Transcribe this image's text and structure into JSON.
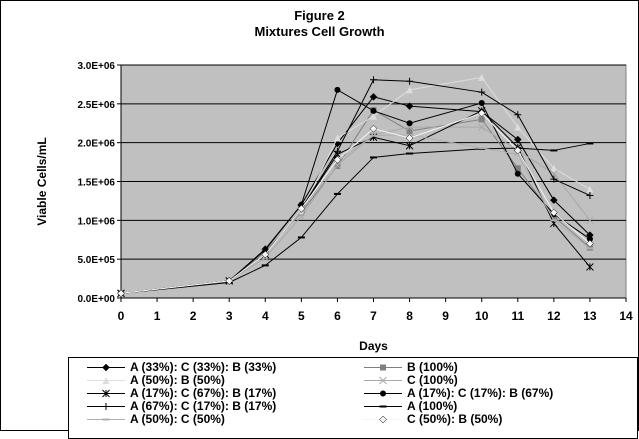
{
  "chart_data": {
    "type": "line",
    "title": "Figure 2",
    "subtitle": "Mixtures Cell Growth",
    "xlabel": "Days",
    "ylabel": "Viable Cells/mL",
    "xlim": [
      0,
      14
    ],
    "ylim": [
      0,
      3000000
    ],
    "x_ticks": [
      "0",
      "1",
      "2",
      "3",
      "4",
      "5",
      "6",
      "7",
      "8",
      "9",
      "10",
      "11",
      "12",
      "13",
      "14"
    ],
    "y_ticks": [
      "0.0E+00",
      "5.0E+05",
      "1.0E+06",
      "1.5E+06",
      "2.0E+06",
      "2.5E+06",
      "3.0E+06"
    ],
    "grid": true,
    "plot_background": "#c0c0c0",
    "legend_position": "bottom",
    "x": [
      0,
      3,
      4,
      5,
      6,
      7,
      8,
      10,
      11,
      12,
      13
    ],
    "series": [
      {
        "name": "A (33%): C (33%): B (33%)",
        "color": "#000000",
        "marker": "diamond",
        "values": [
          60000,
          220000,
          630000,
          1200000,
          1990000,
          2590000,
          2470000,
          2400000,
          2040000,
          1260000,
          810000
        ]
      },
      {
        "name": "B (100%)",
        "color": "#808080",
        "marker": "square",
        "values": [
          60000,
          210000,
          600000,
          1100000,
          1700000,
          2420000,
          2150000,
          2300000,
          1670000,
          1050000,
          650000
        ]
      },
      {
        "name": "A (50%): B (50%)",
        "color": "#dddddd",
        "marker": "triangle",
        "values": [
          60000,
          220000,
          560000,
          1120000,
          2060000,
          2340000,
          2680000,
          2840000,
          2200000,
          1670000,
          1400000
        ]
      },
      {
        "name": "C (100%)",
        "color": "#a9a9a9",
        "marker": "x",
        "values": [
          60000,
          220000,
          520000,
          1050000,
          1710000,
          2100000,
          2200000,
          2200000,
          1900000,
          1600000,
          1000000
        ]
      },
      {
        "name": "A (17%): C (67%): B (17%)",
        "color": "#000000",
        "marker": "asterisk",
        "values": [
          60000,
          220000,
          560000,
          1150000,
          1850000,
          2070000,
          1960000,
          2410000,
          1940000,
          960000,
          400000
        ]
      },
      {
        "name": "A (17%): C (17%): B (67%)",
        "color": "#000000",
        "marker": "circle",
        "values": [
          60000,
          220000,
          620000,
          1200000,
          2680000,
          2410000,
          2250000,
          2510000,
          1600000,
          1080000,
          760000
        ]
      },
      {
        "name": "A (67%): C (17%): B (17%)",
        "color": "#000000",
        "marker": "plus",
        "values": [
          60000,
          220000,
          560000,
          1150000,
          1890000,
          2810000,
          2790000,
          2650000,
          2360000,
          1530000,
          1320000
        ]
      },
      {
        "name": "A (100%)",
        "color": "#000000",
        "marker": "dash",
        "values": [
          60000,
          200000,
          420000,
          780000,
          1340000,
          1810000,
          1860000,
          1920000,
          1930000,
          1900000,
          1990000
        ]
      },
      {
        "name": "A (50%): C (50%)",
        "color": "#b0b0b0",
        "marker": "dash",
        "values": [
          60000,
          220000,
          560000,
          1120000,
          1760000,
          2090000,
          2100000,
          1930000,
          1850000,
          1000000,
          640000
        ]
      },
      {
        "name": "C (50%): B (50%)",
        "color": "#f4f4f4",
        "marker": "diamond",
        "values": [
          60000,
          220000,
          560000,
          1150000,
          1780000,
          2180000,
          2060000,
          2380000,
          1900000,
          1100000,
          700000
        ]
      }
    ]
  }
}
